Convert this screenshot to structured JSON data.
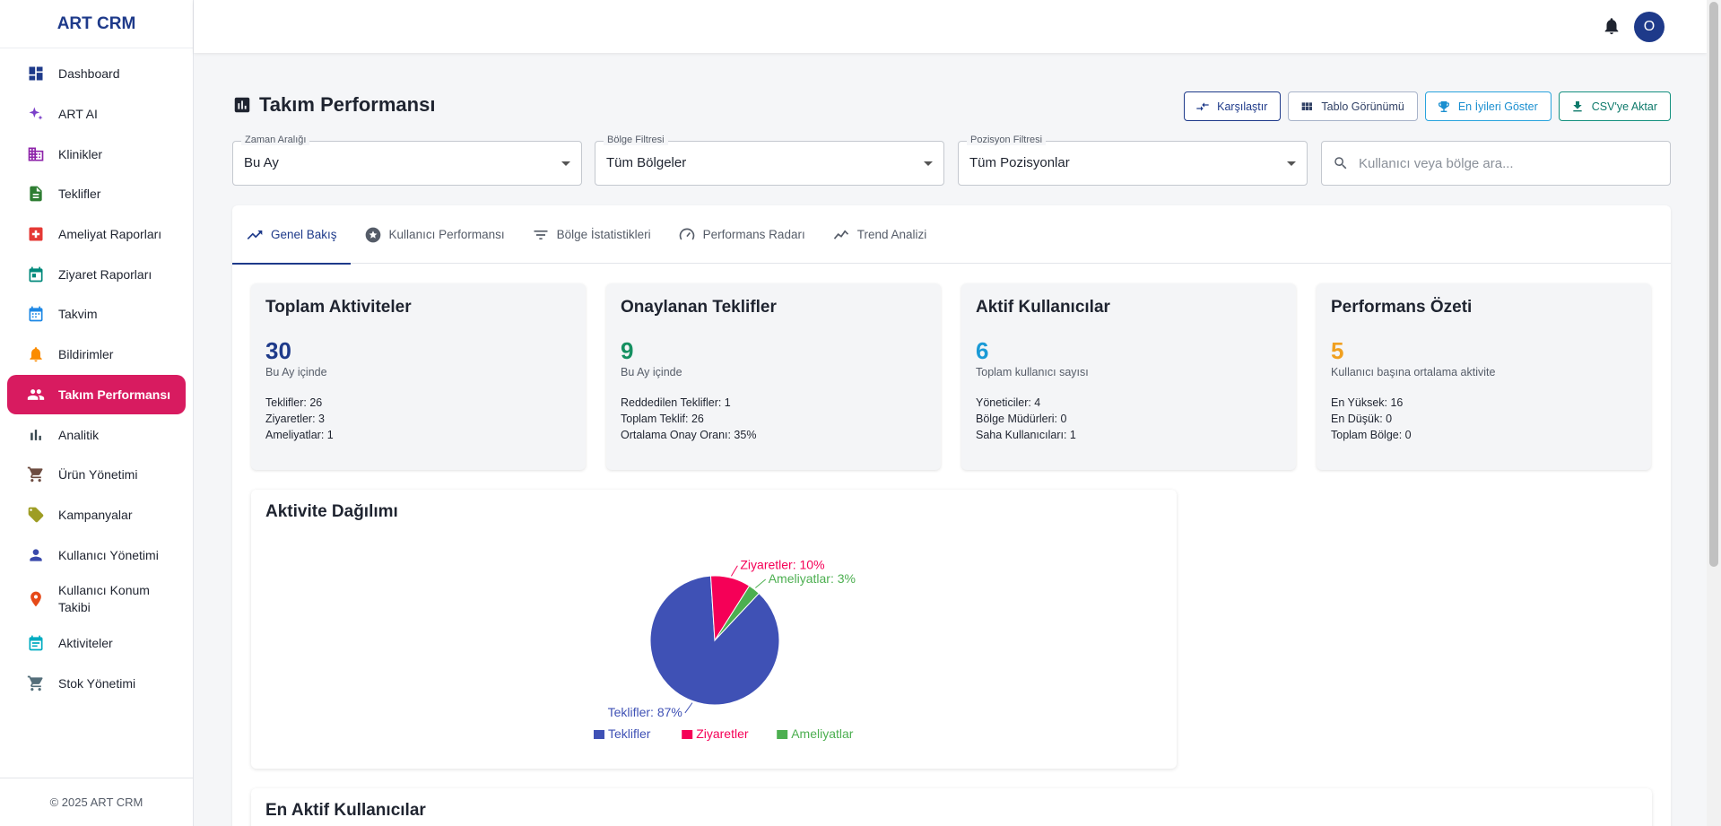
{
  "app": {
    "brand": "ART CRM",
    "footer": "© 2025 ART CRM",
    "avatar_initial": "O"
  },
  "sidebar": {
    "items": [
      {
        "label": "Dashboard",
        "icon": "dashboard-icon",
        "color": "#1e3a8a"
      },
      {
        "label": "ART AI",
        "icon": "sparkle-icon",
        "color": "#7b3fc9"
      },
      {
        "label": "Klinikler",
        "icon": "building-icon",
        "color": "#8e24aa"
      },
      {
        "label": "Teklifler",
        "icon": "document-icon",
        "color": "#2e7d32"
      },
      {
        "label": "Ameliyat Raporları",
        "icon": "medical-cross-icon",
        "color": "#e53935"
      },
      {
        "label": "Ziyaret Raporları",
        "icon": "calendar-check-icon",
        "color": "#00897b"
      },
      {
        "label": "Takvim",
        "icon": "calendar-icon",
        "color": "#1e88e5"
      },
      {
        "label": "Bildirimler",
        "icon": "bell-icon",
        "color": "#fb8c00"
      },
      {
        "label": "Takım Performansı",
        "icon": "people-icon",
        "color": "#ffffff",
        "active": true
      },
      {
        "label": "Analitik",
        "icon": "bar-chart-icon",
        "color": "#37474f"
      },
      {
        "label": "Ürün Yönetimi",
        "icon": "cart-icon",
        "color": "#6d4c41"
      },
      {
        "label": "Kampanyalar",
        "icon": "tag-icon",
        "color": "#9e9d24"
      },
      {
        "label": "Kullanıcı Yönetimi",
        "icon": "person-icon",
        "color": "#3949ab"
      },
      {
        "label": "Kullanıcı Konum Takibi",
        "icon": "location-pin-icon",
        "color": "#e64a19"
      },
      {
        "label": "Aktiviteler",
        "icon": "calendar-list-icon",
        "color": "#00acc1"
      },
      {
        "label": "Stok Yönetimi",
        "icon": "cart-icon",
        "color": "#546e7a"
      }
    ]
  },
  "page": {
    "title": "Takım Performansı",
    "actions": {
      "compare": "Karşılaştır",
      "table_view": "Tablo Görünümü",
      "show_best": "En İyileri Göster",
      "export_csv": "CSV'ye Aktar"
    },
    "filters": {
      "time_label": "Zaman Aralığı",
      "time_value": "Bu Ay",
      "region_label": "Bölge Filtresi",
      "region_value": "Tüm Bölgeler",
      "position_label": "Pozisyon Filtresi",
      "position_value": "Tüm Pozisyonlar",
      "search_placeholder": "Kullanıcı veya bölge ara..."
    },
    "tabs": [
      "Genel Bakış",
      "Kullanıcı Performansı",
      "Bölge İstatistikleri",
      "Performans Radarı",
      "Trend Analizi"
    ],
    "active_tab": "Genel Bakış"
  },
  "cards": [
    {
      "title": "Toplam Aktiviteler",
      "value": "30",
      "color": "#1e3a8a",
      "sub": "Bu Ay içinde",
      "lines": [
        "Teklifler: 26",
        "Ziyaretler: 3",
        "Ameliyatlar: 1"
      ]
    },
    {
      "title": "Onaylanan Teklifler",
      "value": "9",
      "color": "#159061",
      "sub": "Bu Ay içinde",
      "lines": [
        "Reddedilen Teklifler: 1",
        "Toplam Teklif: 26",
        "Ortalama Onay Oranı: 35%"
      ]
    },
    {
      "title": "Aktif Kullanıcılar",
      "value": "6",
      "color": "#1a9ad6",
      "sub": "Toplam kullanıcı sayısı",
      "lines": [
        "Yöneticiler: 4",
        "Bölge Müdürleri: 0",
        "Saha Kullanıcıları: 1"
      ]
    },
    {
      "title": "Performans Özeti",
      "value": "5",
      "color": "#f0a020",
      "sub": "Kullanıcı başına ortalama aktivite",
      "lines": [
        "En Yüksek: 16",
        "En Düşük: 0",
        "Toplam Bölge: 0"
      ]
    }
  ],
  "chart_data": {
    "type": "pie",
    "title": "Aktivite Dağılımı",
    "categories": [
      "Teklifler",
      "Ziyaretler",
      "Ameliyatlar"
    ],
    "values": [
      87,
      10,
      3
    ],
    "value_labels": [
      "Teklifler: 87%",
      "Ziyaretler: 10%",
      "Ameliyatlar: 3%"
    ],
    "colors": [
      "#3f51b5",
      "#f50057",
      "#4caf50"
    ],
    "legend": "bottom"
  },
  "next_section": {
    "title": "En Aktif Kullanıcılar"
  }
}
